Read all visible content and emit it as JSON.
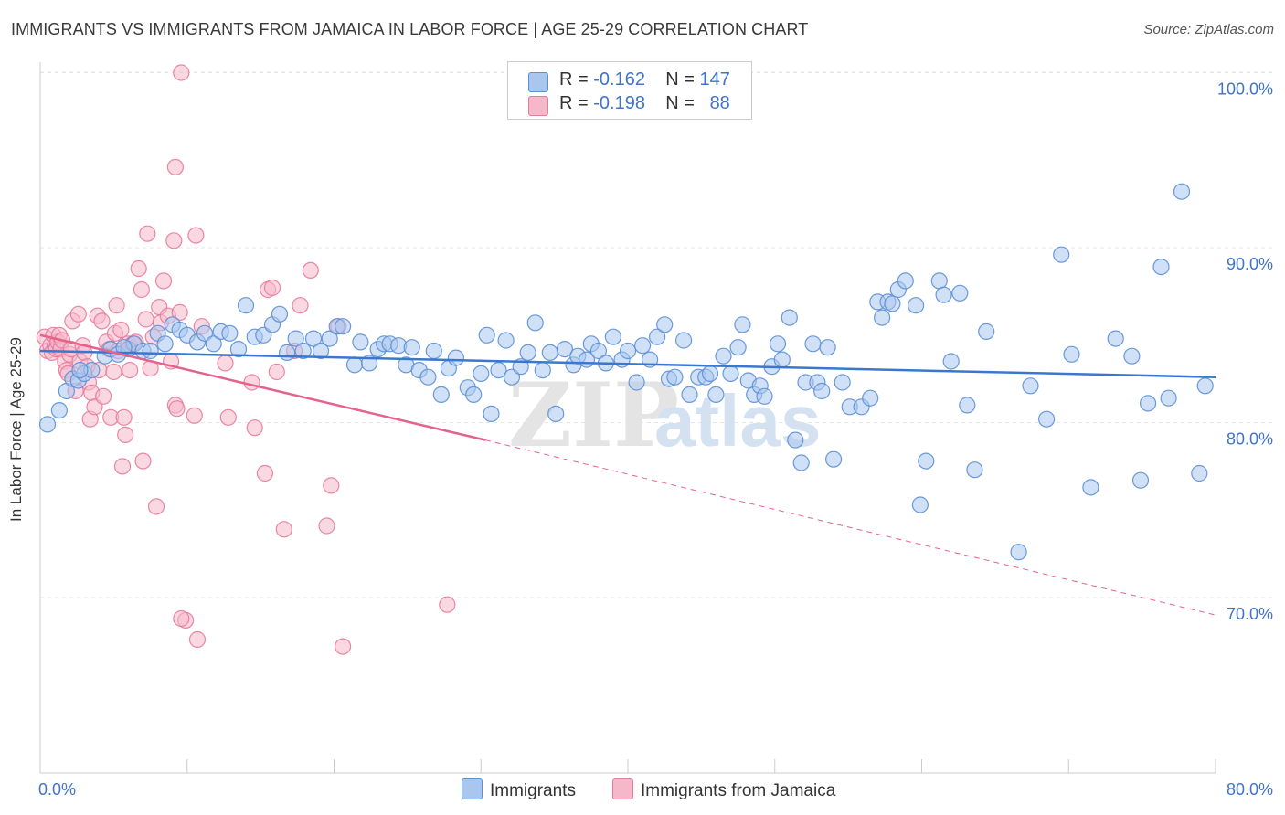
{
  "title": "IMMIGRANTS VS IMMIGRANTS FROM JAMAICA IN LABOR FORCE | AGE 25-29 CORRELATION CHART",
  "source": "Source: ZipAtlas.com",
  "watermark": {
    "zip": "ZIP",
    "atlas": "atlas"
  },
  "stats_box": {
    "rows": [
      {
        "r_label": "R =",
        "r_value": "-0.162",
        "n_label": "N =",
        "n_value": "147",
        "color": "#a9c6ef"
      },
      {
        "r_label": "R =",
        "r_value": "-0.198",
        "n_label": "N =",
        "n_value": "88",
        "color": "#f5b8cb"
      }
    ]
  },
  "legend": [
    {
      "label": "Immigrants",
      "color": "#a9c6ef"
    },
    {
      "label": "Immigrants from Jamaica",
      "color": "#f5b8cb"
    }
  ],
  "chart_data": {
    "type": "scatter",
    "title": "IMMIGRANTS VS IMMIGRANTS FROM JAMAICA IN LABOR FORCE | AGE 25-29 CORRELATION CHART",
    "xlabel": "",
    "ylabel": "In Labor Force | Age 25-29",
    "xlim": [
      0,
      80
    ],
    "ylim": [
      60,
      102
    ],
    "x_tick_labels": [
      "0.0%",
      "80.0%"
    ],
    "y_ticks": [
      70,
      80,
      90,
      100
    ],
    "y_tick_labels": [
      "70.0%",
      "80.0%",
      "90.0%",
      "100.0%"
    ],
    "grid": true,
    "legend_position": "bottom-center",
    "series": [
      {
        "name": "Immigrants",
        "color": "#5b8fd6",
        "fill": "#a9c6ef",
        "trend": {
          "x": [
            0,
            80
          ],
          "y": [
            84.1,
            82.6
          ],
          "dashed_to": null
        },
        "points": [
          [
            0.5,
            79.9
          ],
          [
            1.3,
            80.7
          ],
          [
            1.8,
            81.8
          ],
          [
            2.2,
            82.5
          ],
          [
            2.6,
            82.4
          ],
          [
            3.0,
            82.8
          ],
          [
            3.5,
            83.0
          ],
          [
            4.4,
            83.8
          ],
          [
            4.8,
            84.2
          ],
          [
            5.3,
            83.9
          ],
          [
            6.0,
            84.2
          ],
          [
            6.4,
            84.5
          ],
          [
            7.0,
            84.1
          ],
          [
            7.5,
            84.1
          ],
          [
            8.0,
            85.1
          ],
          [
            8.5,
            84.5
          ],
          [
            9.0,
            85.6
          ],
          [
            9.5,
            85.3
          ],
          [
            10.0,
            85.0
          ],
          [
            10.7,
            84.6
          ],
          [
            11.2,
            85.1
          ],
          [
            11.8,
            84.5
          ],
          [
            12.3,
            85.2
          ],
          [
            12.9,
            85.1
          ],
          [
            13.5,
            84.2
          ],
          [
            14.0,
            86.7
          ],
          [
            14.6,
            84.9
          ],
          [
            15.2,
            85.0
          ],
          [
            15.8,
            85.6
          ],
          [
            16.3,
            86.2
          ],
          [
            16.8,
            84.0
          ],
          [
            17.4,
            84.8
          ],
          [
            17.9,
            84.1
          ],
          [
            18.6,
            84.8
          ],
          [
            19.1,
            84.1
          ],
          [
            19.7,
            84.8
          ],
          [
            20.2,
            85.5
          ],
          [
            20.6,
            85.5
          ],
          [
            21.4,
            83.3
          ],
          [
            21.8,
            84.6
          ],
          [
            22.4,
            83.4
          ],
          [
            23.0,
            84.2
          ],
          [
            23.4,
            84.5
          ],
          [
            23.8,
            84.5
          ],
          [
            24.4,
            84.4
          ],
          [
            24.9,
            83.3
          ],
          [
            25.3,
            84.3
          ],
          [
            25.8,
            83.0
          ],
          [
            26.4,
            82.6
          ],
          [
            26.8,
            84.1
          ],
          [
            27.3,
            81.6
          ],
          [
            27.8,
            83.1
          ],
          [
            28.3,
            83.7
          ],
          [
            29.1,
            82.0
          ],
          [
            29.5,
            81.6
          ],
          [
            30.0,
            82.8
          ],
          [
            30.4,
            85.0
          ],
          [
            30.7,
            80.5
          ],
          [
            31.2,
            83.0
          ],
          [
            31.7,
            84.7
          ],
          [
            32.1,
            82.6
          ],
          [
            32.7,
            83.2
          ],
          [
            33.2,
            84.0
          ],
          [
            33.7,
            85.7
          ],
          [
            34.2,
            83.0
          ],
          [
            34.7,
            84.0
          ],
          [
            35.1,
            80.5
          ],
          [
            35.7,
            84.2
          ],
          [
            36.3,
            83.3
          ],
          [
            36.6,
            83.8
          ],
          [
            37.2,
            83.6
          ],
          [
            37.5,
            84.5
          ],
          [
            38.0,
            84.1
          ],
          [
            38.5,
            83.4
          ],
          [
            39.0,
            84.9
          ],
          [
            39.6,
            83.6
          ],
          [
            40.0,
            84.1
          ],
          [
            40.6,
            82.3
          ],
          [
            41.0,
            84.4
          ],
          [
            41.5,
            83.6
          ],
          [
            42.0,
            84.9
          ],
          [
            42.5,
            85.6
          ],
          [
            42.8,
            82.5
          ],
          [
            43.2,
            82.6
          ],
          [
            43.8,
            84.7
          ],
          [
            44.2,
            81.6
          ],
          [
            44.8,
            82.6
          ],
          [
            45.3,
            82.6
          ],
          [
            45.6,
            82.8
          ],
          [
            46.0,
            81.6
          ],
          [
            46.5,
            83.8
          ],
          [
            47.0,
            82.8
          ],
          [
            47.5,
            84.3
          ],
          [
            47.8,
            85.6
          ],
          [
            48.2,
            82.4
          ],
          [
            48.6,
            81.6
          ],
          [
            49.0,
            82.1
          ],
          [
            49.3,
            81.5
          ],
          [
            49.8,
            83.2
          ],
          [
            50.2,
            84.5
          ],
          [
            50.5,
            83.6
          ],
          [
            51.0,
            86.0
          ],
          [
            51.4,
            79.0
          ],
          [
            51.8,
            77.7
          ],
          [
            52.1,
            82.3
          ],
          [
            52.6,
            84.5
          ],
          [
            52.9,
            82.3
          ],
          [
            53.2,
            81.8
          ],
          [
            53.6,
            84.3
          ],
          [
            54.0,
            77.9
          ],
          [
            54.6,
            82.3
          ],
          [
            55.1,
            80.9
          ],
          [
            55.9,
            80.9
          ],
          [
            56.5,
            81.4
          ],
          [
            57.0,
            86.9
          ],
          [
            57.3,
            86.0
          ],
          [
            57.7,
            86.9
          ],
          [
            58.0,
            86.8
          ],
          [
            58.4,
            87.6
          ],
          [
            58.9,
            88.1
          ],
          [
            59.6,
            86.7
          ],
          [
            59.9,
            75.3
          ],
          [
            60.3,
            77.8
          ],
          [
            61.2,
            88.1
          ],
          [
            61.5,
            87.3
          ],
          [
            62.0,
            83.5
          ],
          [
            62.6,
            87.4
          ],
          [
            63.1,
            81.0
          ],
          [
            63.6,
            77.3
          ],
          [
            64.4,
            85.2
          ],
          [
            66.6,
            72.6
          ],
          [
            67.4,
            82.1
          ],
          [
            68.5,
            80.2
          ],
          [
            69.5,
            89.6
          ],
          [
            70.2,
            83.9
          ],
          [
            71.5,
            76.3
          ],
          [
            73.2,
            84.8
          ],
          [
            74.3,
            83.8
          ],
          [
            74.9,
            76.7
          ],
          [
            75.4,
            81.1
          ],
          [
            76.3,
            88.9
          ],
          [
            76.8,
            81.4
          ],
          [
            77.7,
            93.2
          ],
          [
            78.9,
            77.1
          ],
          [
            79.3,
            82.1
          ],
          [
            2.7,
            83.0
          ],
          [
            5.7,
            84.3
          ]
        ]
      },
      {
        "name": "Immigrants from Jamaica",
        "color": "#e87a9c",
        "fill": "#f5b8cb",
        "trend": {
          "x": [
            0,
            30.3
          ],
          "y": [
            85.0,
            79.0
          ],
          "dashed_to": {
            "x": 80,
            "y": 69.0
          }
        },
        "points": [
          [
            0.3,
            84.9
          ],
          [
            0.5,
            84.1
          ],
          [
            0.7,
            84.4
          ],
          [
            0.8,
            84.0
          ],
          [
            0.9,
            85.0
          ],
          [
            1.0,
            84.4
          ],
          [
            1.1,
            84.2
          ],
          [
            1.2,
            84.6
          ],
          [
            1.3,
            85.0
          ],
          [
            1.4,
            84.2
          ],
          [
            1.5,
            84.7
          ],
          [
            1.7,
            83.5
          ],
          [
            1.8,
            83.0
          ],
          [
            1.9,
            82.8
          ],
          [
            2.0,
            83.9
          ],
          [
            2.1,
            84.2
          ],
          [
            2.2,
            85.8
          ],
          [
            2.4,
            81.8
          ],
          [
            2.6,
            86.2
          ],
          [
            2.7,
            83.5
          ],
          [
            2.9,
            84.4
          ],
          [
            3.0,
            84.0
          ],
          [
            3.2,
            83.2
          ],
          [
            3.3,
            82.3
          ],
          [
            3.4,
            80.2
          ],
          [
            3.5,
            81.7
          ],
          [
            3.7,
            80.9
          ],
          [
            3.9,
            86.1
          ],
          [
            4.0,
            83.0
          ],
          [
            4.2,
            85.8
          ],
          [
            4.3,
            81.5
          ],
          [
            4.5,
            84.6
          ],
          [
            4.7,
            84.2
          ],
          [
            4.8,
            80.3
          ],
          [
            5.0,
            82.9
          ],
          [
            5.1,
            85.1
          ],
          [
            5.2,
            86.7
          ],
          [
            5.3,
            84.1
          ],
          [
            5.5,
            85.3
          ],
          [
            5.6,
            77.5
          ],
          [
            5.7,
            80.3
          ],
          [
            5.8,
            79.3
          ],
          [
            6.0,
            84.5
          ],
          [
            6.1,
            83.0
          ],
          [
            6.3,
            84.5
          ],
          [
            6.5,
            84.6
          ],
          [
            6.7,
            88.8
          ],
          [
            6.9,
            87.6
          ],
          [
            7.0,
            77.8
          ],
          [
            7.2,
            85.9
          ],
          [
            7.3,
            90.8
          ],
          [
            7.5,
            83.1
          ],
          [
            7.7,
            84.9
          ],
          [
            7.9,
            75.2
          ],
          [
            8.1,
            86.6
          ],
          [
            8.2,
            85.7
          ],
          [
            8.4,
            88.1
          ],
          [
            8.7,
            86.1
          ],
          [
            8.9,
            83.5
          ],
          [
            9.1,
            90.4
          ],
          [
            9.2,
            81.0
          ],
          [
            9.3,
            80.8
          ],
          [
            9.5,
            86.3
          ],
          [
            10.5,
            80.4
          ],
          [
            11.0,
            85.5
          ],
          [
            12.6,
            83.4
          ],
          [
            12.8,
            80.3
          ],
          [
            14.4,
            82.3
          ],
          [
            14.6,
            79.7
          ],
          [
            15.5,
            87.6
          ],
          [
            15.8,
            87.7
          ],
          [
            15.3,
            77.1
          ],
          [
            16.1,
            82.9
          ],
          [
            16.6,
            73.9
          ],
          [
            17.3,
            84.1
          ],
          [
            17.7,
            86.7
          ],
          [
            18.4,
            88.7
          ],
          [
            19.5,
            74.1
          ],
          [
            19.8,
            76.4
          ],
          [
            20.3,
            85.5
          ],
          [
            9.9,
            68.7
          ],
          [
            9.6,
            68.8
          ],
          [
            10.7,
            67.6
          ],
          [
            20.6,
            67.2
          ],
          [
            27.7,
            69.6
          ],
          [
            9.2,
            94.6
          ],
          [
            9.6,
            100.0
          ],
          [
            10.6,
            90.7
          ]
        ]
      }
    ]
  }
}
